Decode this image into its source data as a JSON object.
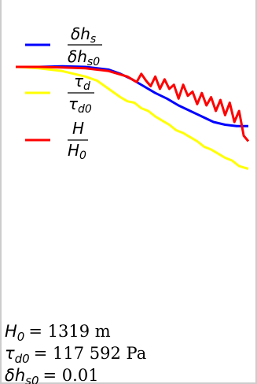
{
  "chart_data": {
    "type": "line",
    "title": "",
    "xlabel": "",
    "ylabel": "",
    "grid": false,
    "legend_position": "top-left",
    "xlim": [
      0,
      100
    ],
    "ylim": [
      0,
      1.2
    ],
    "series": [
      {
        "key": "dhs",
        "color": "#0000ff",
        "legend": {
          "num_base": "δh",
          "num_sub": "s",
          "den_base": "δh",
          "den_sub": "s0"
        },
        "x": [
          0,
          10,
          20,
          30,
          40,
          45,
          50,
          55,
          60,
          65,
          70,
          75,
          80,
          85,
          90,
          95,
          100
        ],
        "y": [
          1.0,
          1.0,
          1.002,
          1.0,
          0.99,
          0.975,
          0.955,
          0.93,
          0.905,
          0.885,
          0.86,
          0.84,
          0.82,
          0.8,
          0.79,
          0.785,
          0.785
        ]
      },
      {
        "key": "tau",
        "color": "#ffff00",
        "legend": {
          "num_base": "τ",
          "num_sub": "d",
          "den_base": "τ",
          "den_sub": "d0"
        },
        "x": [
          0,
          5,
          10,
          15,
          20,
          25,
          30,
          35,
          40,
          45,
          48,
          51,
          54,
          57,
          60,
          63,
          66,
          69,
          72,
          75,
          78,
          81,
          84,
          87,
          90,
          93,
          96,
          98,
          100
        ],
        "y": [
          1.0,
          0.998,
          0.995,
          0.99,
          0.985,
          0.975,
          0.965,
          0.95,
          0.92,
          0.89,
          0.875,
          0.87,
          0.85,
          0.84,
          0.82,
          0.805,
          0.79,
          0.77,
          0.76,
          0.745,
          0.73,
          0.71,
          0.7,
          0.685,
          0.67,
          0.66,
          0.64,
          0.635,
          0.63
        ]
      },
      {
        "key": "H",
        "color": "#ff0000",
        "legend": {
          "num_base": "H",
          "num_sub": "",
          "den_base": "H",
          "den_sub": "0"
        },
        "x": [
          0,
          10,
          20,
          30,
          35,
          40,
          44,
          48,
          50,
          52,
          54,
          56,
          58,
          60,
          62,
          64,
          66,
          68,
          70,
          72,
          74,
          76,
          78,
          80,
          82,
          84,
          86,
          88,
          90,
          92,
          94,
          96,
          98,
          100
        ],
        "y": [
          1.0,
          1.0,
          0.998,
          0.995,
          0.99,
          0.985,
          0.975,
          0.965,
          0.955,
          0.945,
          0.975,
          0.95,
          0.93,
          0.965,
          0.92,
          0.955,
          0.92,
          0.935,
          0.885,
          0.935,
          0.895,
          0.91,
          0.865,
          0.905,
          0.86,
          0.89,
          0.84,
          0.88,
          0.825,
          0.87,
          0.8,
          0.84,
          0.75,
          0.73
        ]
      }
    ],
    "annotations": [
      {
        "key": "H0",
        "label_base": "H",
        "label_sub": "0",
        "value": "= 1319 m"
      },
      {
        "key": "tau0",
        "label_base": "τ",
        "label_sub": "d0",
        "value": "= 117 592 Pa"
      },
      {
        "key": "dhs0",
        "label_base": "δh",
        "label_sub": "s0",
        "value": "= 0.01"
      }
    ]
  }
}
